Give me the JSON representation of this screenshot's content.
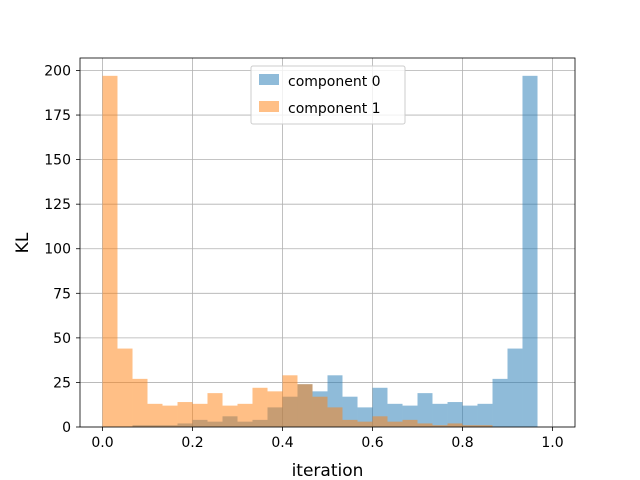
{
  "chart_data": {
    "type": "histogram",
    "title": "",
    "xlabel": "iteration",
    "ylabel": "KL",
    "xlim": [
      -0.05,
      1.05
    ],
    "ylim": [
      0,
      207
    ],
    "xticks": [
      0.0,
      0.2,
      0.4,
      0.6,
      0.8,
      1.0
    ],
    "xtick_labels": [
      "0.0",
      "0.2",
      "0.4",
      "0.6",
      "0.8",
      "1.0"
    ],
    "yticks": [
      0,
      25,
      50,
      75,
      100,
      125,
      150,
      175,
      200
    ],
    "ytick_labels": [
      "0",
      "25",
      "50",
      "75",
      "100",
      "125",
      "150",
      "175",
      "200"
    ],
    "grid": true,
    "legend_position": "upper center",
    "bin_edges": [
      0.0,
      0.0333,
      0.0667,
      0.1,
      0.1333,
      0.1667,
      0.2,
      0.2333,
      0.2667,
      0.3,
      0.3333,
      0.3667,
      0.4,
      0.4333,
      0.4667,
      0.5,
      0.5333,
      0.5667,
      0.6,
      0.6333,
      0.6667,
      0.7,
      0.7333,
      0.7667,
      0.8,
      0.8333,
      0.8667,
      0.9,
      0.9333,
      0.9667,
      1.0
    ],
    "series": [
      {
        "name": "component 0",
        "color": "#1f77b4",
        "alpha": 0.5,
        "values": [
          0,
          0,
          1,
          1,
          1,
          2,
          4,
          3,
          6,
          3,
          4,
          11,
          17,
          24,
          20,
          29,
          17,
          11,
          22,
          13,
          12,
          19,
          13,
          14,
          12,
          13,
          27,
          44,
          197,
          0
        ]
      },
      {
        "name": "component 1",
        "color": "#ff7f0e",
        "alpha": 0.5,
        "values": [
          197,
          44,
          27,
          13,
          12,
          14,
          13,
          19,
          12,
          13,
          22,
          20,
          29,
          24,
          17,
          11,
          4,
          3,
          6,
          3,
          4,
          2,
          1,
          2,
          1,
          1,
          0,
          0,
          0,
          0
        ]
      }
    ]
  }
}
